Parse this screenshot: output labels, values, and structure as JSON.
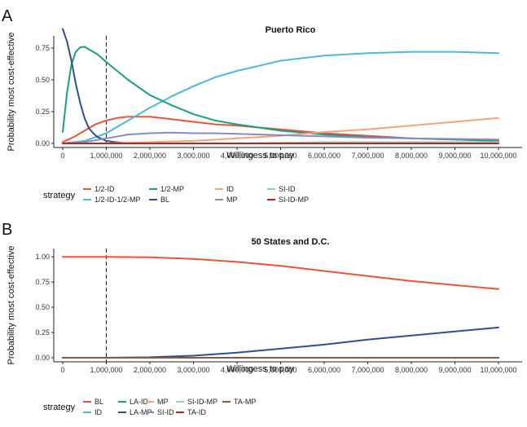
{
  "chart_data": [
    {
      "panel": "A",
      "type": "line",
      "title": "Puerto Rico",
      "xlabel": "Willingess to pay",
      "ylabel": "Probability most cost-effective",
      "xlim": [
        0,
        10000000
      ],
      "ylim": [
        0,
        0.82
      ],
      "xticks": [
        0,
        1000000,
        2000000,
        3000000,
        4000000,
        5000000,
        6000000,
        7000000,
        8000000,
        9000000,
        10000000
      ],
      "xtick_labels": [
        "0",
        "1,000,000",
        "2,000,000",
        "3,000,000",
        "4,000,000",
        "5,000,000",
        "6,000,000",
        "7,000,000",
        "8,000,000",
        "9,000,000",
        "10,000,000"
      ],
      "yticks": [
        0,
        0.25,
        0.5,
        0.75
      ],
      "ytick_labels": [
        "0.00",
        "0.25",
        "0.50",
        "0.75"
      ],
      "vline_x": 1000000,
      "grid": false,
      "legend_title": "strategy",
      "legend_position": "bottom",
      "series": [
        {
          "name": "1/2-ID",
          "color": "#e8553a",
          "x": [
            0,
            250000,
            500000,
            750000,
            1000000,
            1250000,
            1500000,
            2000000,
            2500000,
            3000000,
            3500000,
            4000000,
            5000000,
            6000000,
            7000000,
            8000000,
            9000000,
            10000000
          ],
          "y": [
            0.01,
            0.05,
            0.1,
            0.15,
            0.18,
            0.2,
            0.21,
            0.21,
            0.19,
            0.17,
            0.15,
            0.14,
            0.11,
            0.08,
            0.06,
            0.04,
            0.03,
            0.02
          ]
        },
        {
          "name": "1/2-ID-1/2-MP",
          "color": "#4db9d4",
          "x": [
            0,
            500000,
            1000000,
            1500000,
            2000000,
            2500000,
            3000000,
            3500000,
            4000000,
            4500000,
            5000000,
            6000000,
            7000000,
            8000000,
            9000000,
            10000000
          ],
          "y": [
            0.0,
            0.02,
            0.08,
            0.18,
            0.28,
            0.37,
            0.45,
            0.52,
            0.57,
            0.61,
            0.65,
            0.69,
            0.71,
            0.72,
            0.72,
            0.71
          ]
        },
        {
          "name": "1/2-MP",
          "color": "#1a9e82",
          "x": [
            0,
            100000,
            200000,
            300000,
            400000,
            500000,
            600000,
            800000,
            1000000,
            1500000,
            2000000,
            2500000,
            3000000,
            3500000,
            4000000,
            5000000,
            6000000,
            7000000,
            8000000,
            9000000,
            10000000
          ],
          "y": [
            0.09,
            0.4,
            0.62,
            0.72,
            0.755,
            0.76,
            0.74,
            0.7,
            0.64,
            0.5,
            0.38,
            0.3,
            0.23,
            0.18,
            0.15,
            0.1,
            0.07,
            0.05,
            0.04,
            0.03,
            0.02
          ]
        },
        {
          "name": "BL",
          "color": "#334f8a",
          "x": [
            0,
            100000,
            200000,
            300000,
            400000,
            500000,
            600000,
            700000,
            800000,
            1000000,
            1200000,
            1500000,
            2000000,
            3000000,
            10000000
          ],
          "y": [
            0.9,
            0.8,
            0.65,
            0.47,
            0.32,
            0.2,
            0.12,
            0.08,
            0.05,
            0.02,
            0.01,
            0.0,
            0.0,
            0.0,
            0.0
          ]
        },
        {
          "name": "ID",
          "color": "#f0a482",
          "x": [
            0,
            1000000,
            2000000,
            3000000,
            4000000,
            5000000,
            6000000,
            7000000,
            8000000,
            9000000,
            10000000
          ],
          "y": [
            0.0,
            0.0,
            0.01,
            0.02,
            0.04,
            0.06,
            0.09,
            0.11,
            0.14,
            0.17,
            0.2
          ]
        },
        {
          "name": "MP",
          "color": "#8b88c4",
          "x": [
            0,
            500000,
            1000000,
            1500000,
            2000000,
            2500000,
            3000000,
            3500000,
            4000000,
            5000000,
            6000000,
            7000000,
            8000000,
            9000000,
            10000000
          ],
          "y": [
            0.0,
            0.01,
            0.04,
            0.07,
            0.08,
            0.085,
            0.08,
            0.08,
            0.075,
            0.065,
            0.055,
            0.045,
            0.04,
            0.035,
            0.03
          ]
        },
        {
          "name": "SI-ID",
          "color": "#8fd0c0",
          "x": [
            0,
            2000000,
            4000000,
            6000000,
            8000000,
            10000000
          ],
          "y": [
            0.0,
            0.0,
            0.0,
            0.01,
            0.01,
            0.01
          ]
        },
        {
          "name": "SI-ID-MP",
          "color": "#c81e14",
          "x": [
            0,
            2000000,
            4000000,
            6000000,
            8000000,
            10000000
          ],
          "y": [
            0.0,
            0.0,
            0.0,
            0.0,
            0.0,
            0.0
          ]
        }
      ]
    },
    {
      "panel": "B",
      "type": "line",
      "title": "50 States and D.C.",
      "xlabel": "Willingess to pay",
      "ylabel": "Probability most cost-effective",
      "xlim": [
        0,
        10000000
      ],
      "ylim": [
        0,
        1.05
      ],
      "xticks": [
        0,
        1000000,
        2000000,
        3000000,
        4000000,
        5000000,
        6000000,
        7000000,
        8000000,
        9000000,
        10000000
      ],
      "xtick_labels": [
        "0",
        "1,000,000",
        "2,000,000",
        "3,000,000",
        "4,000,000",
        "5,000,000",
        "6,000,000",
        "7,000,000",
        "8,000,000",
        "9,000,000",
        "10,000,000"
      ],
      "yticks": [
        0,
        0.25,
        0.5,
        0.75,
        1.0
      ],
      "ytick_labels": [
        "0.00",
        "0.25",
        "0.50",
        "0.75",
        "1.00"
      ],
      "vline_x": 1000000,
      "grid": false,
      "legend_title": "strategy",
      "legend_position": "bottom",
      "series": [
        {
          "name": "BL",
          "color": "#e8553a",
          "x": [
            0,
            1000000,
            2000000,
            3000000,
            4000000,
            5000000,
            6000000,
            7000000,
            8000000,
            9000000,
            10000000
          ],
          "y": [
            1.0,
            1.0,
            0.995,
            0.98,
            0.95,
            0.91,
            0.86,
            0.81,
            0.76,
            0.72,
            0.68
          ]
        },
        {
          "name": "ID",
          "color": "#4db9d4",
          "x": [
            0,
            5000000,
            10000000
          ],
          "y": [
            0.0,
            0.0,
            0.0
          ]
        },
        {
          "name": "LA-ID",
          "color": "#1a9e82",
          "x": [
            0,
            5000000,
            10000000
          ],
          "y": [
            0.0,
            0.0,
            0.0
          ]
        },
        {
          "name": "LA-MP",
          "color": "#334f8a",
          "x": [
            0,
            1000000,
            2000000,
            3000000,
            4000000,
            5000000,
            6000000,
            7000000,
            8000000,
            9000000,
            10000000
          ],
          "y": [
            0.0,
            0.0,
            0.005,
            0.02,
            0.05,
            0.09,
            0.13,
            0.18,
            0.22,
            0.26,
            0.3
          ]
        },
        {
          "name": "MP",
          "color": "#f0a482",
          "x": [
            0,
            5000000,
            10000000
          ],
          "y": [
            0.0,
            0.0,
            0.0
          ]
        },
        {
          "name": "SI-ID",
          "color": "#8b88c4",
          "x": [
            0,
            5000000,
            10000000
          ],
          "y": [
            0.0,
            0.0,
            0.0
          ]
        },
        {
          "name": "SI-ID-MP",
          "color": "#8fd0c0",
          "x": [
            0,
            5000000,
            10000000
          ],
          "y": [
            0.0,
            0.0,
            0.0
          ]
        },
        {
          "name": "TA-ID",
          "color": "#c81e14",
          "x": [
            0,
            5000000,
            10000000
          ],
          "y": [
            0.0,
            0.0,
            0.0
          ]
        },
        {
          "name": "TA-MP",
          "color": "#8a5a40",
          "x": [
            0,
            5000000,
            10000000
          ],
          "y": [
            0.0,
            0.0,
            0.0
          ]
        }
      ]
    }
  ]
}
